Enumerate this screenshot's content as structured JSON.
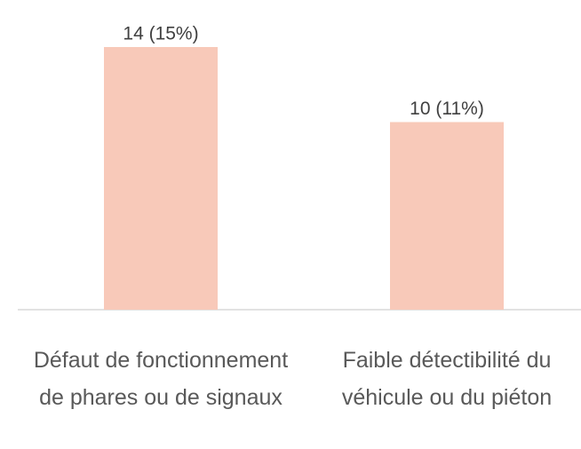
{
  "chart_data": {
    "type": "bar",
    "categories": [
      "Défaut de fonctionnement de phares ou de signaux",
      "Faible détectibilité du véhicule ou du piéton"
    ],
    "values": [
      14,
      10
    ],
    "value_labels": [
      "14 (15%)",
      "10 (11%)"
    ],
    "color": "#f8c9b9"
  }
}
